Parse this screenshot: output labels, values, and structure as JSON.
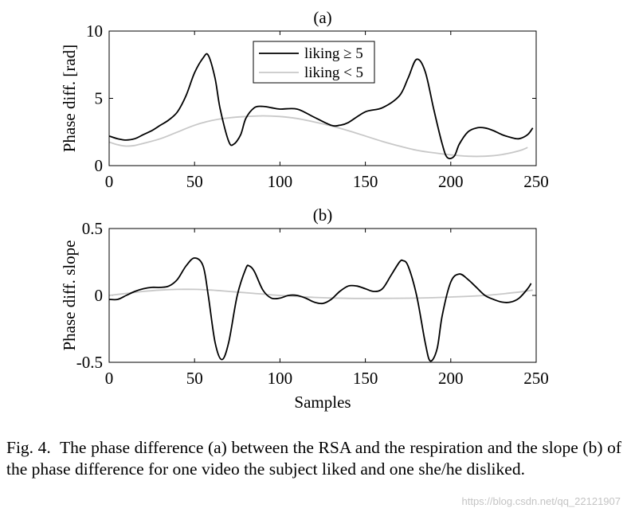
{
  "chart_data": [
    {
      "type": "line",
      "title": "(a)",
      "xlabel": "",
      "ylabel": "Phase diff. [rad]",
      "xlim": [
        0,
        250
      ],
      "ylim": [
        0,
        10
      ],
      "xticks": [
        0,
        50,
        100,
        150,
        200,
        250
      ],
      "xtick_labels": [
        "0",
        "50",
        "100",
        "150",
        "200",
        "250"
      ],
      "yticks": [
        0,
        5,
        10
      ],
      "ytick_labels": [
        "0",
        "5",
        "10"
      ],
      "legend_position": "top-center",
      "series": [
        {
          "name": "liking ≥ 5",
          "color": "#000000",
          "x": [
            0,
            5,
            10,
            15,
            20,
            25,
            30,
            35,
            40,
            45,
            50,
            55,
            58,
            62,
            65,
            70,
            73,
            77,
            80,
            85,
            90,
            95,
            100,
            110,
            120,
            130,
            135,
            140,
            150,
            160,
            170,
            175,
            180,
            185,
            190,
            195,
            198,
            202,
            205,
            210,
            215,
            220,
            225,
            230,
            235,
            240,
            245,
            248
          ],
          "y": [
            2.2,
            2.0,
            1.9,
            2.0,
            2.3,
            2.6,
            3.0,
            3.4,
            4.0,
            5.2,
            6.9,
            8.0,
            8.2,
            6.5,
            4.2,
            1.8,
            1.6,
            2.3,
            3.5,
            4.3,
            4.4,
            4.3,
            4.2,
            4.2,
            3.6,
            3.0,
            3.0,
            3.2,
            4.0,
            4.3,
            5.2,
            6.5,
            7.9,
            7.0,
            4.2,
            1.6,
            0.6,
            0.7,
            1.6,
            2.5,
            2.8,
            2.8,
            2.6,
            2.3,
            2.1,
            2.0,
            2.3,
            2.8
          ]
        },
        {
          "name": "liking < 5",
          "color": "#c8c8c8",
          "x": [
            0,
            5,
            10,
            15,
            20,
            30,
            40,
            50,
            60,
            70,
            80,
            90,
            100,
            110,
            120,
            130,
            140,
            150,
            160,
            170,
            180,
            190,
            200,
            210,
            220,
            230,
            240,
            245
          ],
          "y": [
            1.75,
            1.55,
            1.45,
            1.5,
            1.65,
            2.0,
            2.5,
            3.0,
            3.35,
            3.55,
            3.65,
            3.7,
            3.65,
            3.5,
            3.25,
            2.95,
            2.6,
            2.2,
            1.8,
            1.45,
            1.15,
            0.95,
            0.8,
            0.7,
            0.7,
            0.82,
            1.1,
            1.35
          ]
        }
      ]
    },
    {
      "type": "line",
      "title": "(b)",
      "xlabel": "Samples",
      "ylabel": "Phase diff. slope",
      "xlim": [
        0,
        250
      ],
      "ylim": [
        -0.5,
        0.5
      ],
      "xticks": [
        0,
        50,
        100,
        150,
        200,
        250
      ],
      "xtick_labels": [
        "0",
        "50",
        "100",
        "150",
        "200",
        "250"
      ],
      "yticks": [
        -0.5,
        0,
        0.5
      ],
      "ytick_labels": [
        "-0.5",
        "0",
        "0.5"
      ],
      "series": [
        {
          "name": "liking ≥ 5",
          "color": "#000000",
          "x": [
            0,
            5,
            10,
            15,
            20,
            25,
            30,
            35,
            40,
            45,
            50,
            55,
            58,
            62,
            66,
            70,
            75,
            80,
            82,
            85,
            90,
            95,
            100,
            105,
            110,
            115,
            120,
            125,
            130,
            135,
            140,
            145,
            150,
            155,
            160,
            165,
            170,
            172,
            175,
            180,
            185,
            188,
            192,
            195,
            200,
            205,
            210,
            215,
            220,
            225,
            230,
            235,
            240,
            245,
            247
          ],
          "y": [
            -0.03,
            -0.03,
            0.0,
            0.03,
            0.05,
            0.06,
            0.06,
            0.07,
            0.12,
            0.22,
            0.28,
            0.22,
            0.0,
            -0.35,
            -0.48,
            -0.35,
            0.0,
            0.2,
            0.22,
            0.18,
            0.04,
            -0.02,
            -0.02,
            0.0,
            0.0,
            -0.02,
            -0.05,
            -0.06,
            -0.03,
            0.03,
            0.07,
            0.07,
            0.05,
            0.03,
            0.05,
            0.15,
            0.25,
            0.26,
            0.22,
            0.0,
            -0.35,
            -0.49,
            -0.4,
            -0.15,
            0.1,
            0.16,
            0.12,
            0.06,
            0.0,
            -0.03,
            -0.05,
            -0.05,
            -0.02,
            0.05,
            0.09
          ]
        },
        {
          "name": "liking < 5",
          "color": "#c8c8c8",
          "x": [
            0,
            10,
            20,
            30,
            40,
            50,
            60,
            70,
            80,
            90,
            100,
            120,
            140,
            160,
            180,
            200,
            220,
            240,
            248
          ],
          "y": [
            0.0,
            0.015,
            0.03,
            0.04,
            0.045,
            0.045,
            0.04,
            0.03,
            0.02,
            0.01,
            0.0,
            -0.015,
            -0.022,
            -0.022,
            -0.02,
            -0.012,
            0.0,
            0.025,
            0.04
          ]
        }
      ]
    }
  ],
  "caption": {
    "label": "Fig. 4.",
    "text": "The phase difference (a) between the RSA and the respiration and the slope (b) of the phase difference for one video the subject liked and one she/he disliked."
  },
  "watermark": "https://blog.csdn.net/qq_22121907"
}
